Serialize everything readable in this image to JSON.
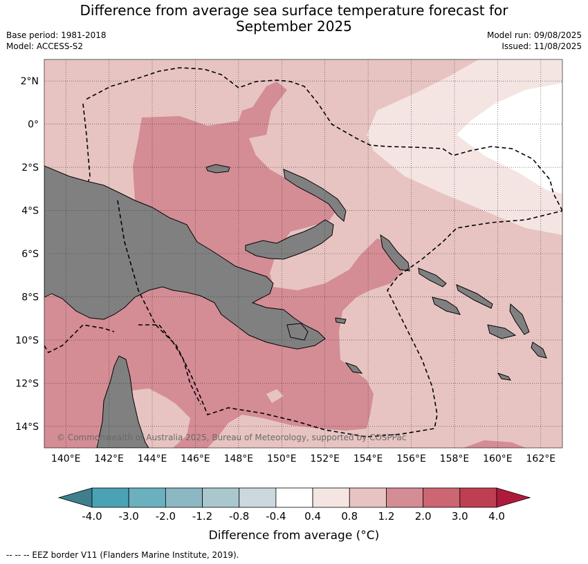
{
  "title_line1": "Difference from average sea surface temperature forecast for",
  "title_line2": "September 2025",
  "base_period": "Base period: 1981-2018",
  "model": "Model: ACCESS-S2",
  "model_run": "Model run: 09/08/2025",
  "issued": "Issued: 11/08/2025",
  "copyright": "© Commonwealth of Australia 2025, Bureau of Meteorology, supported by COSPPac",
  "footnote": "--  --  -- EEZ border V11 (Flanders Marine Institute, 2019).",
  "colorbar_title": "Difference from average (°C)",
  "lat_labels": [
    "2°N",
    "0°",
    "2°S",
    "4°S",
    "6°S",
    "8°S",
    "10°S",
    "12°S",
    "14°S"
  ],
  "lat_values": [
    2,
    0,
    -2,
    -4,
    -6,
    -8,
    -10,
    -12,
    -14
  ],
  "lon_labels": [
    "140°E",
    "142°E",
    "144°E",
    "146°E",
    "148°E",
    "150°E",
    "152°E",
    "154°E",
    "156°E",
    "158°E",
    "160°E",
    "162°E"
  ],
  "lon_values": [
    140,
    142,
    144,
    146,
    148,
    150,
    152,
    154,
    156,
    158,
    160,
    162
  ],
  "extent": {
    "lon_min": 139,
    "lon_max": 163,
    "lat_min": -15,
    "lat_max": 3
  },
  "colorbar": {
    "tick_labels": [
      "-4.0",
      "-3.0",
      "-2.0",
      "-1.2",
      "-0.8",
      "-0.4",
      "0.4",
      "0.8",
      "1.2",
      "2.0",
      "3.0",
      "4.0"
    ],
    "colors": [
      "#3f7f8d",
      "#4aa2b4",
      "#6ab0bf",
      "#8cb8c3",
      "#a9c7cc",
      "#cbd8dd",
      "#ffffff",
      "#f4e5e3",
      "#e7c4c2",
      "#d48c95",
      "#cb6672",
      "#be3f51",
      "#b01a3a"
    ]
  },
  "colors": {
    "land": "#808080",
    "bg_anomaly": "#e7c4c2",
    "warm_anomaly": "#d48c95",
    "light_anomaly": "#f4e5e3",
    "neutral": "#ffffff"
  }
}
